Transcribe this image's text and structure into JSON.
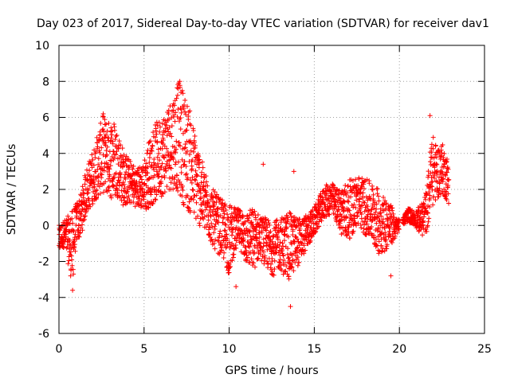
{
  "chart_data": {
    "type": "scatter",
    "title": "Day 023 of 2017, Sidereal Day-to-day VTEC variation (SDTVAR) for receiver dav1",
    "xlabel": "GPS time / hours",
    "ylabel": "SDTVAR / TECUs",
    "xlim": [
      0,
      25
    ],
    "ylim": [
      -6,
      10
    ],
    "xticks": [
      0,
      5,
      10,
      15,
      20,
      25
    ],
    "yticks": [
      -6,
      -4,
      -2,
      0,
      2,
      4,
      6,
      8,
      10
    ],
    "grid": true,
    "legend": "none",
    "marker": "+",
    "series": [
      {
        "name": "SDTVAR",
        "color": "#ff0000",
        "envelope": {
          "x": [
            0.0,
            0.3,
            0.6,
            0.8,
            1.0,
            1.3,
            1.6,
            2.0,
            2.3,
            2.6,
            2.9,
            3.2,
            3.5,
            3.8,
            4.2,
            4.6,
            5.0,
            5.3,
            5.6,
            6.0,
            6.3,
            6.6,
            6.9,
            7.1,
            7.4,
            7.7,
            8.0,
            8.4,
            8.8,
            9.2,
            9.6,
            10.0,
            10.3,
            10.6,
            11.0,
            11.4,
            11.8,
            12.2,
            12.6,
            13.0,
            13.4,
            13.8,
            14.2,
            14.6,
            15.0,
            15.3,
            15.6,
            16.0,
            16.4,
            16.8,
            17.2,
            17.6,
            18.0,
            18.4,
            18.8,
            19.2,
            19.6,
            19.8,
            20.2,
            20.5,
            20.9,
            21.3,
            21.6,
            21.9,
            22.2,
            22.5,
            22.9
          ],
          "upper": [
            0.0,
            0.3,
            0.6,
            0.9,
            1.2,
            1.8,
            3.2,
            4.2,
            5.2,
            6.2,
            5.8,
            6.0,
            5.2,
            4.2,
            3.6,
            3.2,
            3.6,
            4.8,
            5.6,
            6.0,
            6.6,
            7.2,
            7.8,
            8.0,
            7.4,
            6.4,
            5.2,
            3.6,
            2.4,
            1.8,
            1.4,
            1.2,
            1.0,
            0.9,
            0.8,
            1.0,
            0.6,
            0.4,
            0.2,
            0.4,
            0.8,
            0.6,
            0.4,
            0.6,
            1.0,
            1.6,
            2.2,
            2.4,
            2.0,
            2.4,
            2.6,
            2.8,
            2.6,
            2.4,
            2.0,
            1.6,
            1.0,
            0.4,
            0.4,
            1.0,
            0.8,
            1.2,
            2.0,
            5.2,
            4.4,
            4.6,
            3.6
          ],
          "lower": [
            -1.6,
            -1.2,
            -2.4,
            -3.4,
            -1.0,
            -0.6,
            0.6,
            1.2,
            1.6,
            1.8,
            1.6,
            1.4,
            1.6,
            1.0,
            1.2,
            1.0,
            0.8,
            1.0,
            1.2,
            1.6,
            1.8,
            2.0,
            2.0,
            1.6,
            1.0,
            0.6,
            0.2,
            -0.2,
            -0.8,
            -1.4,
            -1.8,
            -2.8,
            -1.6,
            -1.2,
            -2.2,
            -2.6,
            -1.8,
            -2.4,
            -2.8,
            -2.4,
            -3.2,
            -2.6,
            -2.0,
            -1.2,
            -0.6,
            0.0,
            0.4,
            0.6,
            0.0,
            -1.0,
            -0.6,
            0.0,
            -0.6,
            -1.0,
            -1.6,
            -1.4,
            -1.0,
            -0.6,
            0.0,
            0.2,
            0.0,
            -0.6,
            -0.4,
            1.0,
            1.4,
            1.8,
            1.2
          ]
        },
        "extremes": [
          {
            "x": 2.6,
            "y": 6.2
          },
          {
            "x": 7.1,
            "y": 8.0
          },
          {
            "x": 21.8,
            "y": 6.1
          },
          {
            "x": 13.6,
            "y": -4.5
          },
          {
            "x": 0.8,
            "y": -3.6
          },
          {
            "x": 10.4,
            "y": -3.4
          },
          {
            "x": 12.0,
            "y": 3.4
          },
          {
            "x": 13.8,
            "y": 3.0
          },
          {
            "x": 19.5,
            "y": -2.8
          }
        ],
        "gaps": [
          [
            20.0,
            20.2
          ],
          [
            22.95,
            25.0
          ]
        ]
      }
    ]
  }
}
